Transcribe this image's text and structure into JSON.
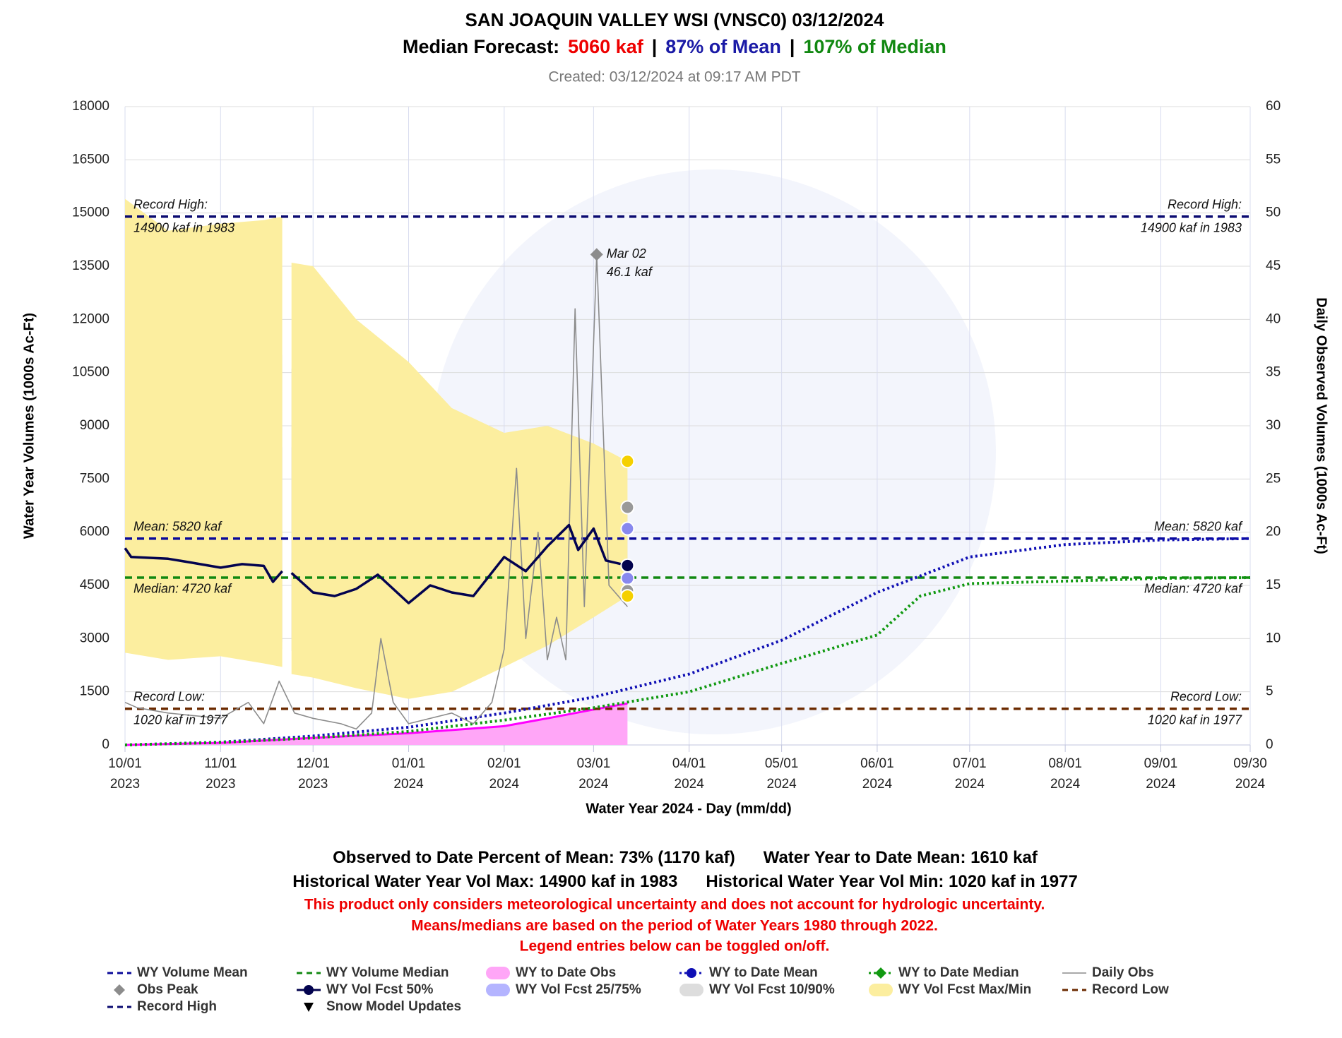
{
  "chart_data": {
    "type": "line",
    "title": "SAN JOAQUIN VALLEY WSI (VNSC0)  03/12/2024",
    "subtitle": [
      "Median Forecast:",
      "5060 kaf",
      "|",
      "87% of Mean",
      "|",
      "107% of Median"
    ],
    "subtitle_colors": [
      "#000000",
      "#ee0000",
      "#000000",
      "#1a1aa6",
      "#000000",
      "#118811"
    ],
    "created": "Created: 03/12/2024 at 09:17 AM PDT",
    "x_label": "Water Year 2024 - Day (mm/dd)",
    "y_label": "Water Year Volumes (1000s Ac-Ft)",
    "y2_label": "Daily Observed Volumes (1000s Ac-Ft)",
    "xlim": [
      "2023-10-01",
      "2024-09-30"
    ],
    "xticks": [
      {
        "value": "2023-10-01",
        "label": "10/01\n2023"
      },
      {
        "value": "2023-11-01",
        "label": "11/01\n2023"
      },
      {
        "value": "2023-12-01",
        "label": "12/01\n2023"
      },
      {
        "value": "2024-01-01",
        "label": "01/01\n2024"
      },
      {
        "value": "2024-02-01",
        "label": "02/01\n2024"
      },
      {
        "value": "2024-03-01",
        "label": "03/01\n2024"
      },
      {
        "value": "2024-04-01",
        "label": "04/01\n2024"
      },
      {
        "value": "2024-05-01",
        "label": "05/01\n2024"
      },
      {
        "value": "2024-06-01",
        "label": "06/01\n2024"
      },
      {
        "value": "2024-07-01",
        "label": "07/01\n2024"
      },
      {
        "value": "2024-08-01",
        "label": "08/01\n2024"
      },
      {
        "value": "2024-09-01",
        "label": "09/01\n2024"
      },
      {
        "value": "2024-09-30",
        "label": "09/30\n2024"
      }
    ],
    "ylim": [
      0,
      18000
    ],
    "yticks": [
      0,
      1500,
      3000,
      4500,
      6000,
      7500,
      9000,
      10500,
      12000,
      13500,
      15000,
      16500,
      18000
    ],
    "y2lim": [
      0,
      60
    ],
    "y2ticks": [
      0,
      5,
      10,
      15,
      20,
      25,
      30,
      35,
      40,
      45,
      50,
      55,
      60
    ],
    "grid": true,
    "series": [
      {
        "name": "WY Volume Mean",
        "kind": "hline",
        "style": "dashed",
        "color": "#0a0a9a",
        "value": 5820,
        "labels": [
          "Mean: 5820 kaf"
        ],
        "label_pos": "above"
      },
      {
        "name": "WY Volume Median",
        "kind": "hline",
        "style": "dashed",
        "color": "#118811",
        "value": 4720,
        "labels": [
          "Median: 4720 kaf"
        ],
        "label_pos": "below"
      },
      {
        "name": "WY to Date Obs",
        "kind": "area",
        "color": "#ff00ff",
        "fill": "#ffa6f7",
        "x": [
          "2023-10-01",
          "2023-11-01",
          "2023-12-01",
          "2024-01-01",
          "2024-02-01",
          "2024-02-15",
          "2024-03-01",
          "2024-03-12"
        ],
        "values": [
          0,
          60,
          200,
          330,
          530,
          750,
          1000,
          1170
        ]
      },
      {
        "name": "WY to Date Mean",
        "kind": "line",
        "style": "dotted",
        "marker": "circle",
        "color": "#0f0fb4",
        "x": [
          "2023-10-01",
          "2023-11-01",
          "2023-12-01",
          "2024-01-01",
          "2024-02-01",
          "2024-03-01",
          "2024-04-01",
          "2024-05-01",
          "2024-06-01",
          "2024-07-01",
          "2024-08-01",
          "2024-09-01",
          "2024-09-30"
        ],
        "values": [
          0,
          80,
          250,
          500,
          900,
          1350,
          2000,
          2950,
          4300,
          5300,
          5650,
          5780,
          5820
        ]
      },
      {
        "name": "WY to Date Median",
        "kind": "line",
        "style": "dotted",
        "marker": "diamond",
        "color": "#119911",
        "x": [
          "2023-10-01",
          "2023-11-01",
          "2023-12-01",
          "2024-01-01",
          "2024-02-01",
          "2024-03-01",
          "2024-04-01",
          "2024-05-01",
          "2024-06-01",
          "2024-06-15",
          "2024-07-01",
          "2024-08-01",
          "2024-09-01",
          "2024-09-30"
        ],
        "values": [
          0,
          70,
          200,
          380,
          700,
          1050,
          1500,
          2300,
          3100,
          4200,
          4550,
          4620,
          4700,
          4720
        ]
      },
      {
        "name": "Daily Obs",
        "kind": "line",
        "style": "thin",
        "color": "#8c8c8c",
        "axis": "y2",
        "x": [
          "2023-10-01",
          "2023-10-05",
          "2023-10-15",
          "2023-11-01",
          "2023-11-10",
          "2023-11-15",
          "2023-11-20",
          "2023-11-25",
          "2023-12-01",
          "2023-12-10",
          "2023-12-15",
          "2023-12-20",
          "2023-12-23",
          "2023-12-27",
          "2024-01-01",
          "2024-01-15",
          "2024-01-22",
          "2024-01-28",
          "2024-02-01",
          "2024-02-05",
          "2024-02-08",
          "2024-02-12",
          "2024-02-15",
          "2024-02-18",
          "2024-02-21",
          "2024-02-24",
          "2024-02-27",
          "2024-03-02",
          "2024-03-06",
          "2024-03-12"
        ],
        "values": [
          4,
          3.5,
          3,
          2.5,
          4,
          2,
          6,
          3,
          2.5,
          2,
          1.5,
          3,
          10,
          4,
          2,
          3,
          2,
          4,
          9,
          26,
          10,
          20,
          8,
          12,
          8,
          41,
          13,
          46.1,
          15,
          13
        ]
      },
      {
        "name": "Obs Peak",
        "kind": "point",
        "marker": "diamond",
        "color": "#8c8c8c",
        "axis": "y2",
        "x": [
          "2024-03-02"
        ],
        "values": [
          46.1
        ],
        "labels": [
          "Mar 02",
          "46.1 kaf"
        ]
      },
      {
        "name": "WY Vol Fcst 50%",
        "kind": "line",
        "style": "solid",
        "marker": "circle",
        "color": "#03034f",
        "x": [
          "2023-10-01",
          "2023-10-03",
          "2023-10-15",
          "2023-10-22",
          "2023-11-01",
          "2023-11-08",
          "2023-11-15",
          "2023-11-18",
          "2023-11-21",
          "2023-11-23",
          "2023-11-24",
          "2023-12-01",
          "2023-12-08",
          "2023-12-15",
          "2023-12-22",
          "2024-01-01",
          "2024-01-08",
          "2024-01-15",
          "2024-01-22",
          "2024-02-01",
          "2024-02-08",
          "2024-02-15",
          "2024-02-22",
          "2024-02-25",
          "2024-03-01",
          "2024-03-05",
          "2024-03-12"
        ],
        "values": [
          5550,
          5300,
          5250,
          5150,
          5000,
          5100,
          5050,
          4600,
          4900,
          null,
          4850,
          4300,
          4200,
          4400,
          4800,
          4000,
          4500,
          4300,
          4200,
          5300,
          4900,
          5600,
          6200,
          5500,
          6100,
          5200,
          5060
        ]
      },
      {
        "name": "WY Vol Fcst 25/75%",
        "kind": "band",
        "color": "#b4b4ff",
        "dot": "#8888ee",
        "x": [
          "2023-10-01",
          "2023-10-15",
          "2023-11-01",
          "2023-11-15",
          "2023-11-21",
          "2023-11-23",
          "2023-11-24",
          "2023-12-01",
          "2023-12-15",
          "2024-01-01",
          "2024-01-15",
          "2024-02-01",
          "2024-02-15",
          "2024-03-01",
          "2024-03-12"
        ],
        "high": [
          9000,
          8800,
          8700,
          8600,
          8400,
          null,
          8400,
          8300,
          7900,
          7500,
          7000,
          6500,
          6800,
          6800,
          6100
        ],
        "low": [
          3000,
          3000,
          3000,
          2900,
          2900,
          null,
          3000,
          3000,
          2900,
          2700,
          2500,
          2900,
          3500,
          4200,
          4700
        ]
      },
      {
        "name": "WY Vol Fcst 10/90%",
        "kind": "band",
        "color": "#dddddd",
        "dot": "#999999",
        "x": [
          "2023-10-01",
          "2023-10-15",
          "2023-11-01",
          "2023-11-15",
          "2023-11-21",
          "2023-11-23",
          "2023-11-24",
          "2023-12-01",
          "2023-12-15",
          "2024-01-01",
          "2024-01-15",
          "2024-02-01",
          "2024-02-15",
          "2024-03-01",
          "2024-03-12"
        ],
        "high": [
          11300,
          11000,
          11500,
          11000,
          11000,
          null,
          10600,
          10500,
          10000,
          9400,
          8500,
          7900,
          8100,
          8500,
          6700
        ],
        "low": [
          3000,
          2900,
          3000,
          2800,
          2700,
          null,
          2650,
          2600,
          2400,
          2100,
          2000,
          2400,
          3300,
          4000,
          4350
        ]
      },
      {
        "name": "WY Vol Fcst Max/Min",
        "kind": "band",
        "color": "#fcee9f",
        "dot": "#f5d000",
        "x": [
          "2023-10-01",
          "2023-10-15",
          "2023-11-01",
          "2023-11-15",
          "2023-11-21",
          "2023-11-23",
          "2023-11-24",
          "2023-12-01",
          "2023-12-15",
          "2024-01-01",
          "2024-01-15",
          "2024-02-01",
          "2024-02-15",
          "2024-03-01",
          "2024-03-12"
        ],
        "high": [
          15400,
          14500,
          14700,
          14800,
          14900,
          null,
          13600,
          13500,
          12000,
          10800,
          9500,
          8800,
          9000,
          8500,
          8000
        ],
        "low": [
          2600,
          2400,
          2500,
          2300,
          2200,
          null,
          2000,
          1900,
          1600,
          1300,
          1500,
          2200,
          2800,
          3600,
          4200
        ]
      },
      {
        "name": "Record Low",
        "kind": "hline",
        "style": "dashed",
        "color": "#6b2a00",
        "value": 1020,
        "labels": [
          "Record Low:",
          "1020 kaf in 1977"
        ]
      },
      {
        "name": "Record High",
        "kind": "hline",
        "style": "dashed",
        "color": "#0a0a70",
        "value": 14900,
        "labels": [
          "Record High:",
          "14900 kaf in 1983"
        ]
      },
      {
        "name": "Snow Model Updates",
        "kind": "point",
        "marker": "triangle",
        "color": "#000000",
        "x": [],
        "values": []
      }
    ],
    "stats": [
      [
        "Observed to Date Percent of Mean: 73% (1170 kaf)",
        "Water Year to Date Mean: 1610 kaf"
      ],
      [
        "Historical Water Year Vol Max: 14900 kaf in 1983",
        "Historical Water Year Vol Min: 1020 kaf in 1977"
      ]
    ],
    "notes": [
      "This product only considers meteorological uncertainty and does not account for hydrologic uncertainty.",
      "Means/medians are based on the period of Water Years 1980 through 2022.",
      "Legend entries below can be toggled on/off."
    ]
  }
}
